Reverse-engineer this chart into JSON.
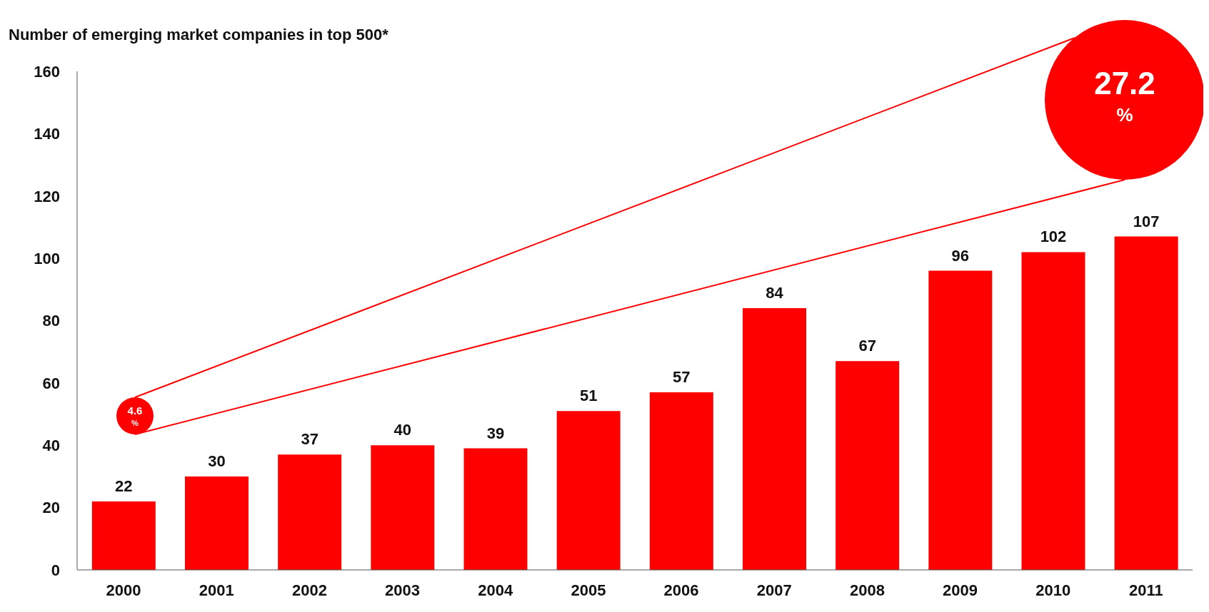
{
  "chart_data": {
    "type": "bar",
    "title": "Number of emerging market companies in top 500*",
    "categories": [
      "2000",
      "2001",
      "2002",
      "2003",
      "2004",
      "2005",
      "2006",
      "2007",
      "2008",
      "2009",
      "2010",
      "2011"
    ],
    "values": [
      22,
      30,
      37,
      40,
      39,
      51,
      57,
      84,
      67,
      96,
      102,
      107
    ],
    "color": "#ff0000",
    "ylim": [
      0,
      160
    ],
    "yticks": [
      0,
      20,
      40,
      60,
      80,
      100,
      120,
      140,
      160
    ],
    "data_labels": true,
    "annotations": [
      "4.6 %",
      "27.2 %"
    ]
  }
}
